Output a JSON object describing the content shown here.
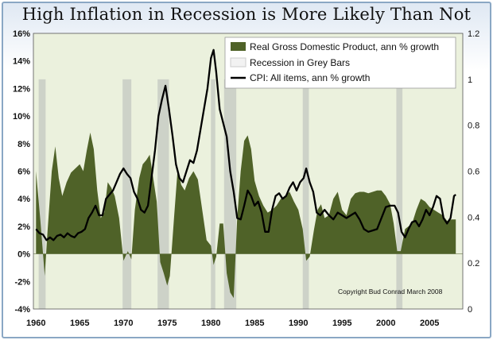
{
  "chart_data": {
    "type": "area",
    "title": "High Inflation in Recession is More Likely Than Not",
    "x_ticks": [
      "1960",
      "1965",
      "1970",
      "1975",
      "1980",
      "1985",
      "1990",
      "1995",
      "2000",
      "2005"
    ],
    "xlim": [
      1959.7,
      2008.8
    ],
    "ylim": [
      -4,
      16
    ],
    "y_ticks": [
      "-4%",
      "-2%",
      "0%",
      "2%",
      "4%",
      "6%",
      "8%",
      "10%",
      "12%",
      "14%",
      "16%"
    ],
    "y2lim": [
      0,
      1.2
    ],
    "y2_ticks": [
      "0",
      "0.2",
      "0.4",
      "0.6",
      "0.8",
      "1",
      "1.2"
    ],
    "grid": false,
    "legend_position": "top-right",
    "annotation": "Copyright Bud Conrad  March 2008",
    "colors": {
      "gdp": "#4f6228",
      "recession": "#c8cdc4",
      "cpi": "#000000",
      "plot_bg": "#ebf1dd"
    },
    "recessions": [
      [
        1960.3,
        1961.1
      ],
      [
        1969.9,
        1970.9
      ],
      [
        1973.9,
        1975.2
      ],
      [
        1980.0,
        1980.5
      ],
      [
        1981.5,
        1982.9
      ],
      [
        1990.5,
        1991.2
      ],
      [
        2001.2,
        2001.9
      ]
    ],
    "series": [
      {
        "name": "Real Gross Domestic Product, ann % growth",
        "kind": "area",
        "x": [
          1960,
          1960.5,
          1961,
          1961.3,
          1961.8,
          1962.2,
          1962.6,
          1963,
          1963.5,
          1964,
          1964.5,
          1965,
          1965.4,
          1965.8,
          1966.2,
          1966.6,
          1967,
          1967.4,
          1967.8,
          1968.2,
          1968.6,
          1969,
          1969.5,
          1970,
          1970.5,
          1970.9,
          1971.3,
          1971.8,
          1972.2,
          1972.6,
          1973,
          1973.4,
          1973.8,
          1974.2,
          1974.6,
          1975,
          1975.3,
          1975.8,
          1976.2,
          1976.6,
          1977,
          1977.5,
          1978,
          1978.5,
          1979,
          1979.5,
          1980,
          1980.3,
          1980.6,
          1981,
          1981.4,
          1981.8,
          1982.2,
          1982.6,
          1983,
          1983.4,
          1983.8,
          1984.2,
          1984.6,
          1985,
          1985.5,
          1986,
          1986.5,
          1987,
          1987.5,
          1988,
          1988.5,
          1989,
          1989.5,
          1990,
          1990.5,
          1990.9,
          1991.3,
          1991.8,
          1992.2,
          1992.6,
          1993,
          1993.5,
          1994,
          1994.5,
          1995,
          1995.5,
          1996,
          1996.5,
          1997,
          1997.5,
          1998,
          1998.5,
          1999,
          1999.5,
          2000,
          2000.5,
          2000.9,
          2001.3,
          2001.7,
          2002.2,
          2002.6,
          2003,
          2003.5,
          2004,
          2004.5,
          2005,
          2005.5,
          2006,
          2006.5,
          2007,
          2007.5,
          2008
        ],
        "y": [
          6.0,
          2.4,
          -1.6,
          1.5,
          6.0,
          7.8,
          5.5,
          4.2,
          5.2,
          5.9,
          6.2,
          6.5,
          6.0,
          7.5,
          8.8,
          7.6,
          4.6,
          2.6,
          3.0,
          5.2,
          4.8,
          4.2,
          2.6,
          -0.5,
          0.2,
          -0.4,
          3.2,
          5.5,
          6.5,
          6.8,
          7.2,
          5.5,
          3.8,
          -0.6,
          -1.4,
          -2.3,
          -1.6,
          2.8,
          6.2,
          5.0,
          4.6,
          5.5,
          6.0,
          5.4,
          3.2,
          1.0,
          0.6,
          -0.8,
          -0.2,
          2.2,
          2.2,
          -1.4,
          -2.8,
          -3.2,
          2.6,
          6.0,
          8.2,
          8.6,
          7.6,
          5.3,
          4.2,
          3.5,
          3.0,
          3.2,
          3.5,
          4.0,
          4.2,
          4.5,
          3.8,
          3.2,
          1.8,
          -0.5,
          -0.2,
          1.8,
          3.2,
          3.6,
          2.6,
          2.8,
          4.0,
          4.5,
          3.2,
          2.8,
          4.0,
          4.4,
          4.5,
          4.5,
          4.4,
          4.5,
          4.6,
          4.6,
          4.2,
          3.6,
          2.2,
          0.2,
          0.2,
          1.8,
          2.0,
          2.2,
          3.2,
          4.0,
          3.8,
          3.4,
          3.2,
          3.0,
          2.8,
          2.4,
          2.5,
          2.5
        ]
      },
      {
        "name": "Recession in Grey Bars",
        "kind": "bars"
      },
      {
        "name": "CPI: All items, ann % growth",
        "kind": "line",
        "x": [
          1960,
          1960.4,
          1960.8,
          1961.2,
          1961.6,
          1962,
          1962.4,
          1962.8,
          1963.2,
          1963.6,
          1964,
          1964.4,
          1964.8,
          1965.2,
          1965.6,
          1966,
          1966.4,
          1966.8,
          1967.2,
          1967.6,
          1968,
          1968.4,
          1968.8,
          1969.2,
          1969.6,
          1970,
          1970.4,
          1970.8,
          1971.2,
          1971.6,
          1972,
          1972.4,
          1972.8,
          1973.2,
          1973.6,
          1974,
          1974.4,
          1974.8,
          1975.2,
          1975.6,
          1976,
          1976.4,
          1976.8,
          1977.2,
          1977.6,
          1978,
          1978.4,
          1978.8,
          1979.2,
          1979.6,
          1980,
          1980.3,
          1980.6,
          1981,
          1981.4,
          1981.8,
          1982.2,
          1982.6,
          1983,
          1983.4,
          1983.8,
          1984.2,
          1984.6,
          1985,
          1985.4,
          1985.8,
          1986.2,
          1986.6,
          1987,
          1987.4,
          1987.8,
          1988.2,
          1988.6,
          1989,
          1989.4,
          1989.8,
          1990.2,
          1990.6,
          1990.9,
          1991.3,
          1991.7,
          1992.1,
          1992.5,
          1993,
          1993.5,
          1994,
          1994.5,
          1995,
          1995.5,
          1996,
          1996.5,
          1997,
          1997.5,
          1998,
          1998.5,
          1999,
          1999.5,
          2000,
          2000.5,
          2001,
          2001.4,
          2001.8,
          2002.2,
          2002.6,
          2003,
          2003.4,
          2003.8,
          2004.2,
          2004.6,
          2005,
          2005.4,
          2005.8,
          2006.2,
          2006.6,
          2007,
          2007.4,
          2007.8,
          2008
        ],
        "y": [
          1.8,
          1.5,
          1.4,
          1.0,
          1.2,
          1.0,
          1.3,
          1.4,
          1.2,
          1.5,
          1.3,
          1.2,
          1.5,
          1.6,
          1.8,
          2.6,
          3.0,
          3.5,
          2.8,
          2.8,
          4.0,
          4.3,
          4.6,
          5.2,
          5.8,
          6.2,
          5.8,
          5.5,
          4.5,
          4.0,
          3.2,
          3.0,
          3.5,
          5.5,
          7.5,
          10.0,
          11.2,
          12.2,
          10.5,
          8.6,
          6.5,
          5.5,
          5.2,
          6.0,
          6.8,
          6.6,
          7.5,
          9.0,
          10.5,
          12.0,
          14.2,
          14.8,
          13.2,
          10.5,
          9.5,
          8.5,
          6.0,
          4.5,
          2.6,
          2.5,
          3.5,
          4.6,
          4.2,
          3.5,
          3.8,
          3.0,
          1.6,
          1.6,
          3.2,
          4.2,
          4.4,
          4.0,
          4.2,
          4.8,
          5.2,
          4.6,
          5.2,
          5.5,
          6.2,
          5.2,
          4.5,
          3.0,
          2.8,
          3.2,
          2.8,
          2.5,
          3.0,
          2.8,
          2.6,
          2.8,
          3.0,
          2.5,
          1.8,
          1.6,
          1.7,
          1.8,
          2.6,
          3.4,
          3.5,
          3.5,
          3.0,
          1.6,
          1.2,
          1.8,
          2.3,
          2.4,
          2.0,
          2.5,
          3.2,
          2.8,
          3.4,
          4.2,
          4.0,
          2.6,
          2.2,
          2.6,
          4.2,
          4.3
        ]
      }
    ]
  }
}
